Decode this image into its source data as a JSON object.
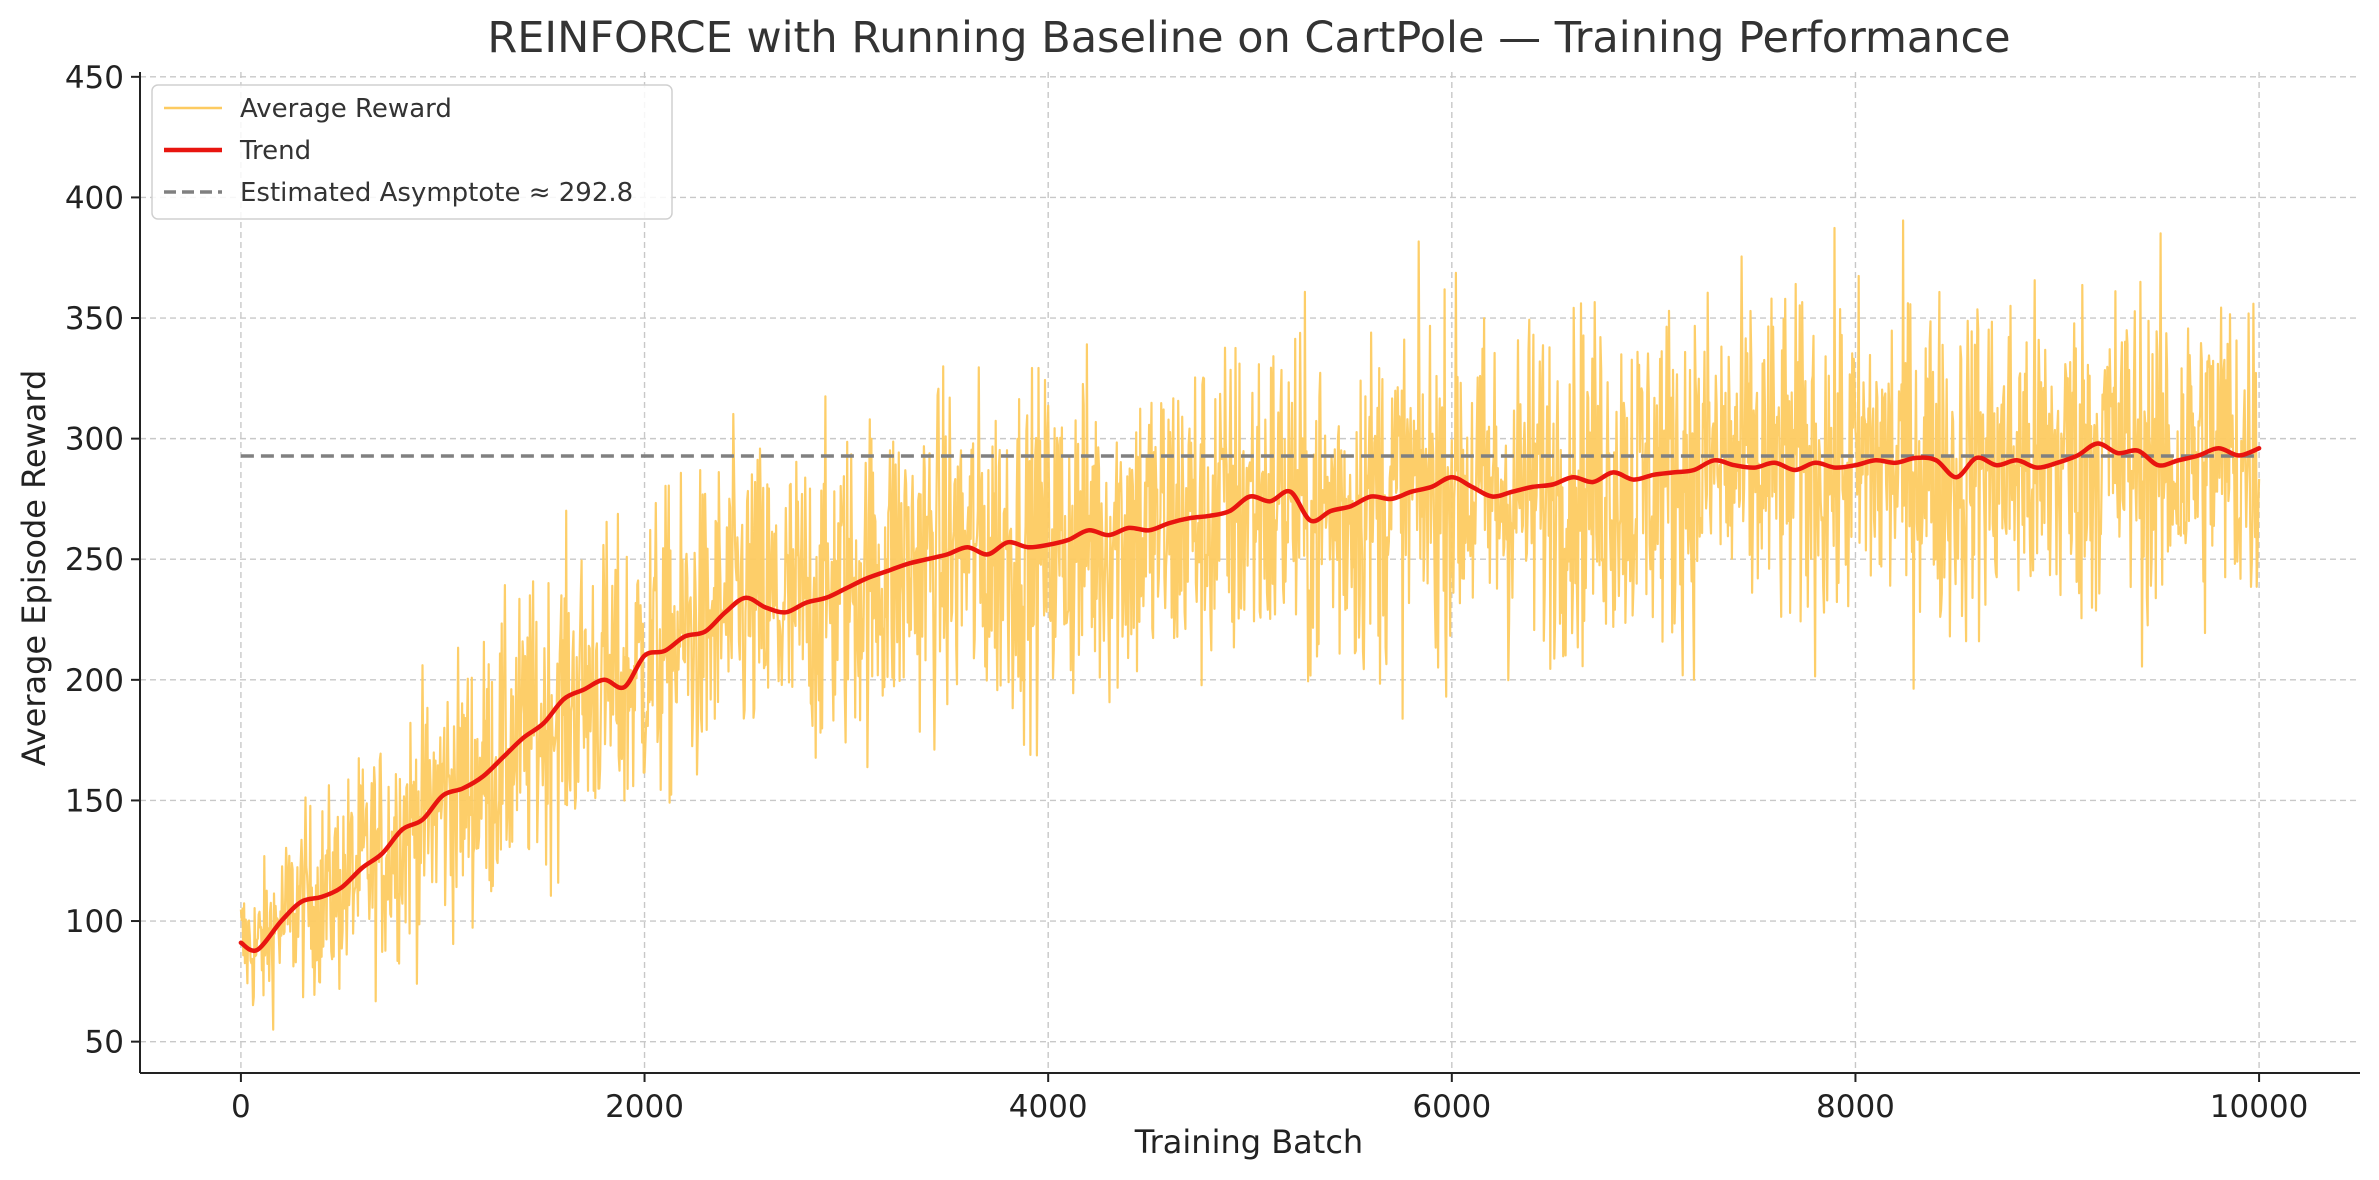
{
  "chart_data": {
    "type": "line",
    "title": "REINFORCE with Running Baseline on CartPole — Training Performance",
    "xlabel": "Training Batch",
    "ylabel": "Average Episode Reward",
    "xlim": [
      -500,
      10500
    ],
    "ylim": [
      37,
      452
    ],
    "xticks": [
      0,
      2000,
      4000,
      6000,
      8000,
      10000
    ],
    "yticks": [
      50,
      100,
      150,
      200,
      250,
      300,
      350,
      400,
      450
    ],
    "grid": true,
    "legend_position": "top-left",
    "legend": [
      {
        "label": "Average Reward",
        "style": "thin-orange"
      },
      {
        "label": "Trend",
        "style": "thick-red"
      },
      {
        "label": "Estimated Asymptote ≈ 292.8",
        "style": "dashed-gray"
      }
    ],
    "series": [
      {
        "name": "Average Reward",
        "color": "#FDCB61",
        "x_range": [
          0,
          10000
        ],
        "note_visible": "noisy raw reward per batch; envelope approximated by mean ± spread",
        "envelope_x": [
          0,
          500,
          1000,
          1500,
          2000,
          2500,
          3000,
          3500,
          4000,
          4500,
          5000,
          5500,
          6000,
          6500,
          7000,
          7500,
          8000,
          8500,
          9000,
          9500,
          10000
        ],
        "envelope_spread": [
          25,
          40,
          50,
          55,
          58,
          60,
          62,
          63,
          64,
          64,
          65,
          65,
          65,
          65,
          65,
          65,
          65,
          65,
          65,
          65,
          65
        ]
      },
      {
        "name": "Trend",
        "color": "#E8150F",
        "x": [
          0,
          80,
          200,
          300,
          400,
          500,
          600,
          700,
          800,
          900,
          1000,
          1100,
          1200,
          1300,
          1400,
          1500,
          1600,
          1700,
          1800,
          1900,
          2000,
          2100,
          2200,
          2300,
          2400,
          2500,
          2600,
          2700,
          2800,
          2900,
          3000,
          3100,
          3200,
          3300,
          3400,
          3500,
          3600,
          3700,
          3800,
          3900,
          4000,
          4100,
          4200,
          4300,
          4400,
          4500,
          4600,
          4700,
          4800,
          4900,
          5000,
          5100,
          5200,
          5300,
          5400,
          5500,
          5600,
          5700,
          5800,
          5900,
          6000,
          6100,
          6200,
          6300,
          6400,
          6500,
          6600,
          6700,
          6800,
          6900,
          7000,
          7100,
          7200,
          7300,
          7400,
          7500,
          7600,
          7700,
          7800,
          7900,
          8000,
          8100,
          8200,
          8300,
          8400,
          8500,
          8600,
          8700,
          8800,
          8900,
          9000,
          9100,
          9200,
          9300,
          9400,
          9500,
          9600,
          9700,
          9800,
          9900,
          10000
        ],
        "y": [
          91,
          88,
          100,
          108,
          110,
          114,
          122,
          128,
          138,
          142,
          152,
          155,
          160,
          168,
          176,
          182,
          192,
          196,
          200,
          197,
          210,
          212,
          218,
          220,
          228,
          234,
          230,
          228,
          232,
          234,
          238,
          242,
          245,
          248,
          250,
          252,
          255,
          252,
          257,
          255,
          256,
          258,
          262,
          260,
          263,
          262,
          265,
          267,
          268,
          270,
          276,
          274,
          278,
          266,
          270,
          272,
          276,
          275,
          278,
          280,
          284,
          280,
          276,
          278,
          280,
          281,
          284,
          282,
          286,
          283,
          285,
          286,
          287,
          291,
          289,
          288,
          290,
          287,
          290,
          288,
          289,
          291,
          290,
          292,
          291,
          284,
          292,
          289,
          291,
          288,
          290,
          293,
          298,
          294,
          295,
          289,
          291,
          293,
          296,
          293,
          296
        ]
      },
      {
        "name": "Estimated Asymptote ≈ 292.8",
        "color": "#808080",
        "dashed": true,
        "x": [
          0,
          10000
        ],
        "y": [
          292.8,
          292.8
        ]
      }
    ]
  }
}
